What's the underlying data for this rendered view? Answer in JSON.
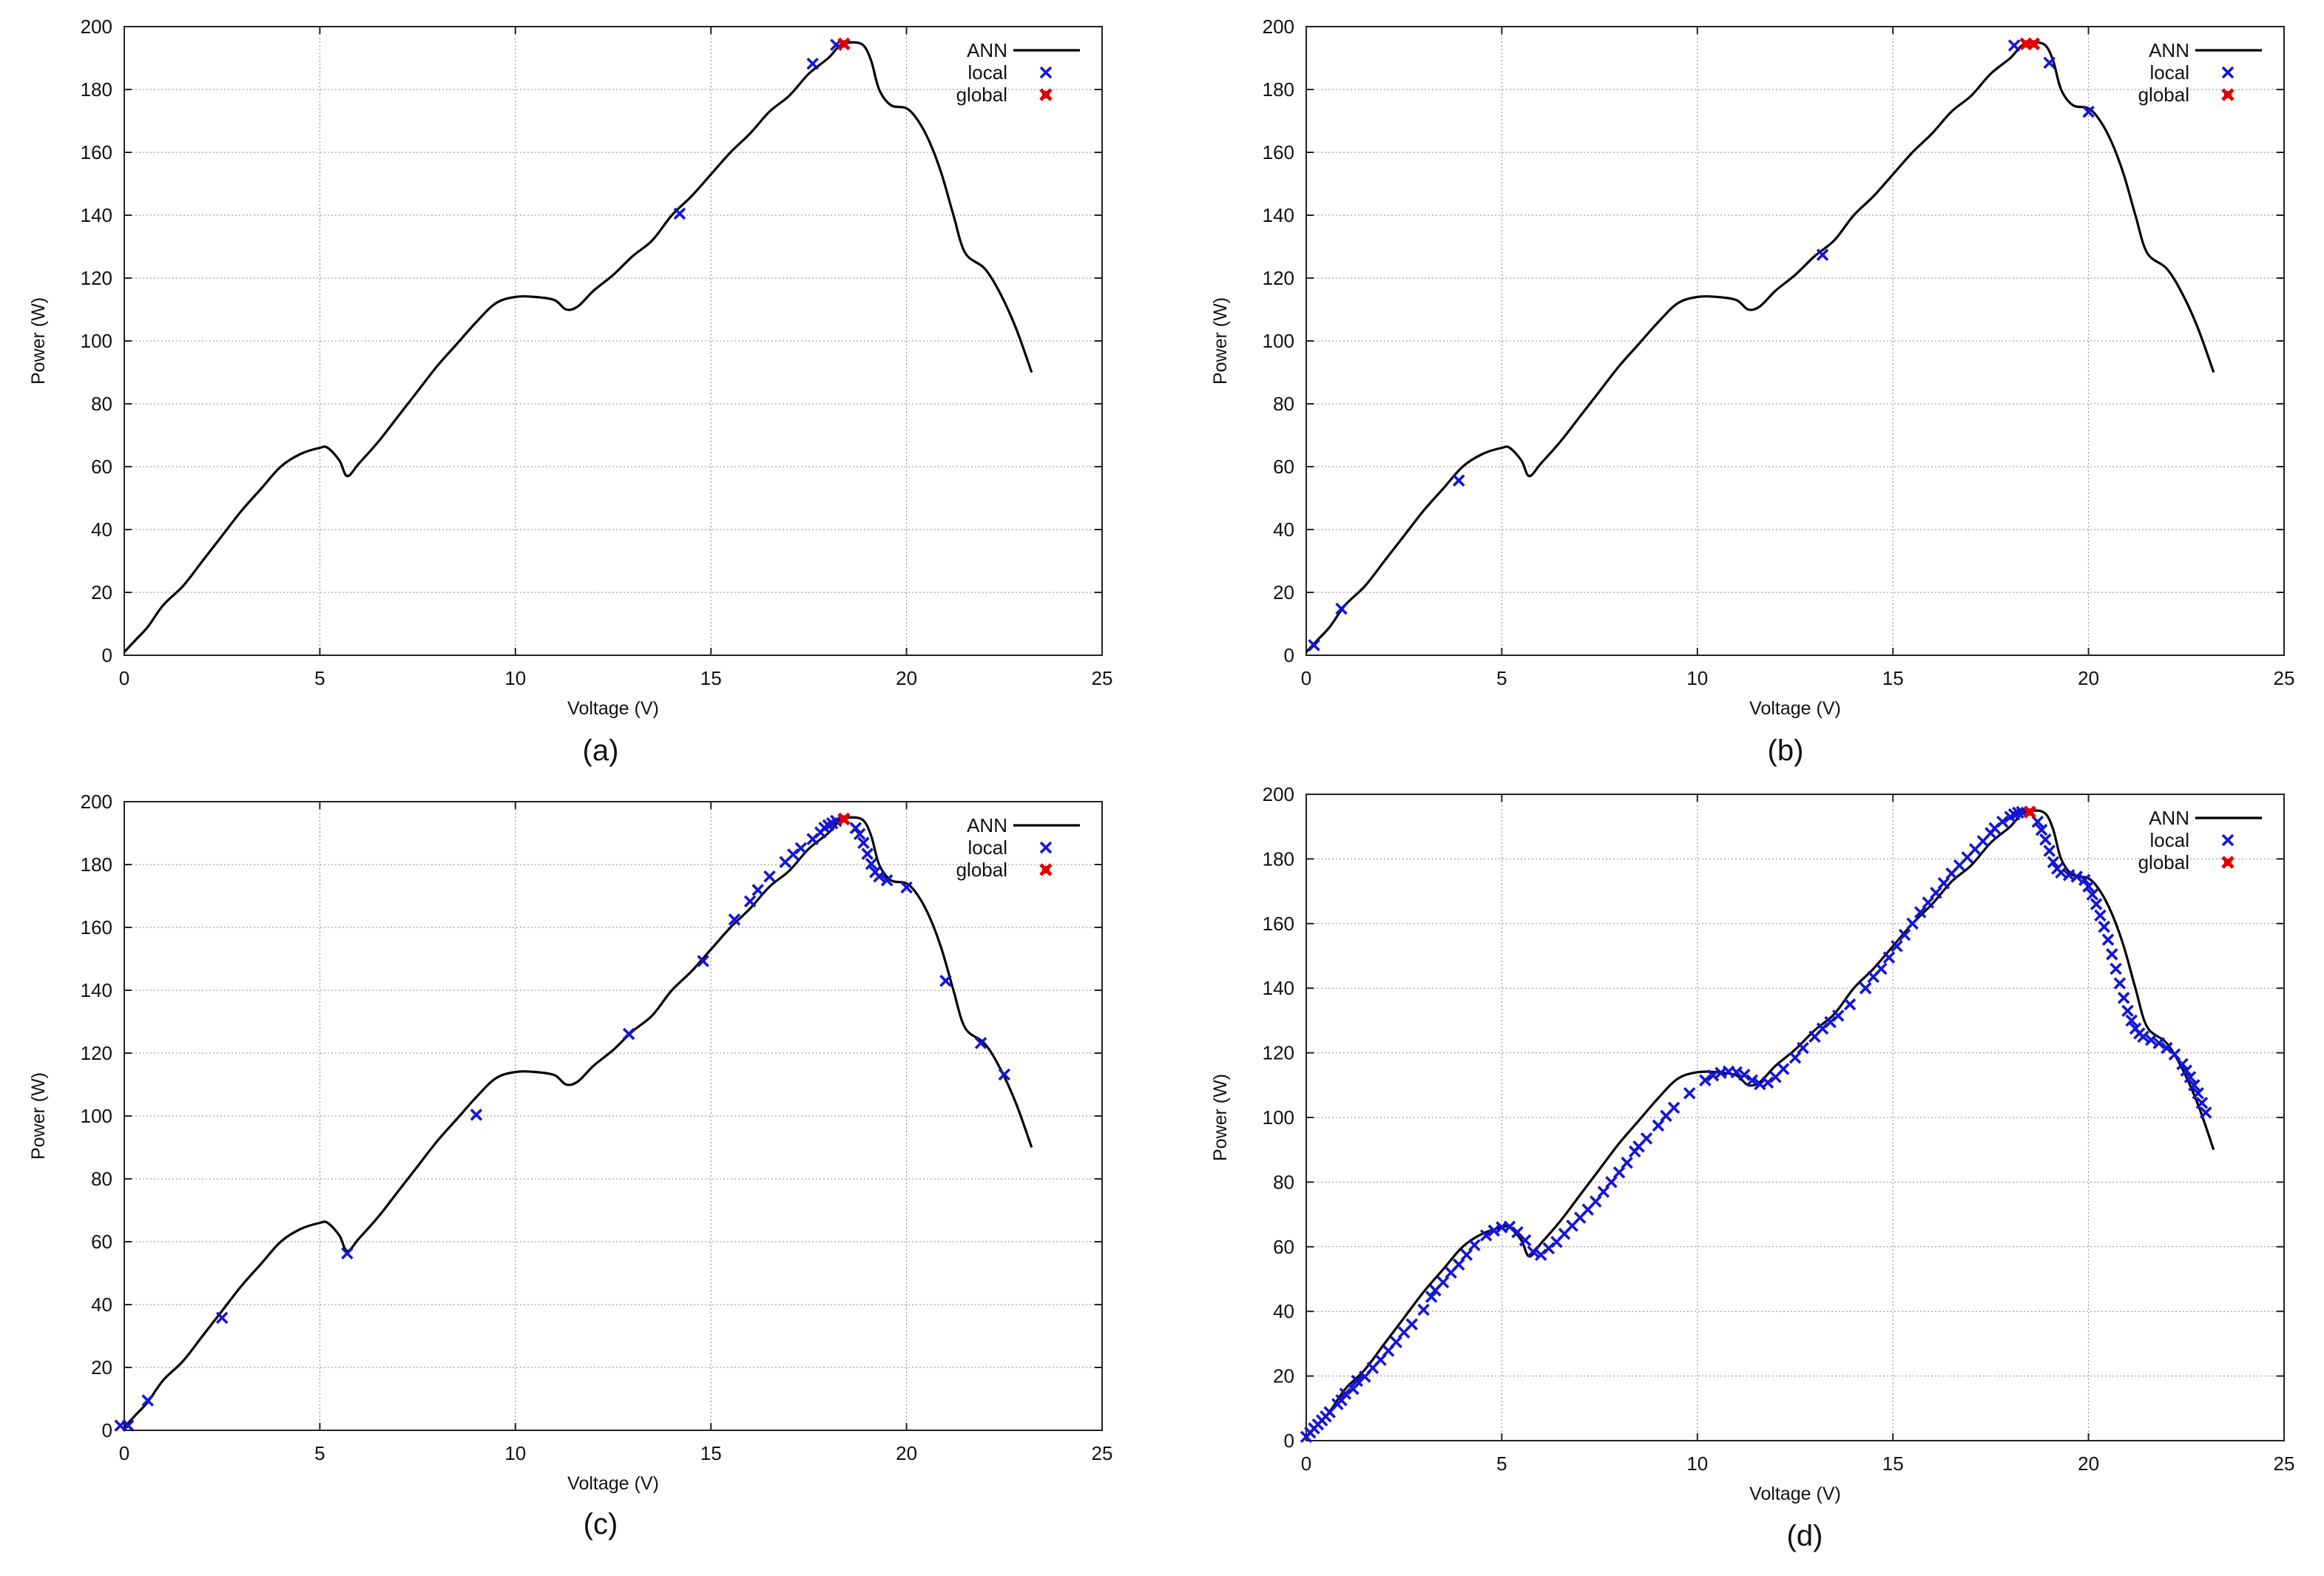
{
  "colors": {
    "curve": "#000000",
    "local": "#1515d4",
    "global": "#e00000",
    "grid": "#8a8a8a"
  },
  "chart_data": [
    {
      "type": "line",
      "caption": "(a)",
      "xlabel": "Voltage (V)",
      "ylabel": "Power (W)",
      "xlim": [
        0,
        25
      ],
      "ylim": [
        0,
        200
      ],
      "xticks": [
        0,
        5,
        10,
        15,
        20,
        25
      ],
      "yticks": [
        0,
        20,
        40,
        60,
        80,
        100,
        120,
        140,
        160,
        180,
        200
      ],
      "grid": true,
      "legend_position": "top-right",
      "series": [
        {
          "name": "ANN",
          "type": "line",
          "x": [
            0,
            0.3,
            0.6,
            1,
            1.5,
            2,
            2.5,
            3,
            3.5,
            4,
            4.5,
            5,
            5.2,
            5.5,
            5.7,
            6,
            6.5,
            7,
            7.5,
            8,
            8.5,
            9,
            9.5,
            10,
            10.5,
            11,
            11.3,
            11.6,
            12,
            12.5,
            13,
            13.5,
            14,
            14.5,
            15,
            15.5,
            16,
            16.5,
            17,
            17.5,
            18,
            18.3,
            18.6,
            18.9,
            19.1,
            19.3,
            19.6,
            20,
            20.3,
            20.6,
            20.9,
            21.2,
            21.5,
            22,
            22.4,
            22.8,
            23.2
          ],
          "y": [
            1,
            5,
            9,
            16,
            22,
            30,
            38,
            46,
            53,
            60,
            64,
            66,
            66,
            62,
            57,
            61,
            68,
            76,
            84,
            92,
            99,
            106,
            112,
            114,
            114,
            113,
            110,
            111,
            116,
            121,
            127,
            132,
            140,
            146,
            153,
            160,
            166,
            173,
            178,
            185,
            190,
            194,
            195,
            194,
            189,
            180,
            175,
            174,
            170,
            163,
            153,
            140,
            128,
            123,
            115,
            104,
            90
          ]
        },
        {
          "name": "local",
          "type": "scatter",
          "x": [
            14.2,
            17.6,
            18.2
          ],
          "y": [
            140.5,
            188.2,
            194.2
          ]
        },
        {
          "name": "global",
          "type": "scatter",
          "x": [
            18.4
          ],
          "y": [
            194.5
          ]
        }
      ]
    },
    {
      "type": "line",
      "caption": "(b)",
      "xlabel": "Voltage (V)",
      "ylabel": "Power (W)",
      "xlim": [
        0,
        25
      ],
      "ylim": [
        0,
        200
      ],
      "xticks": [
        0,
        5,
        10,
        15,
        20,
        25
      ],
      "yticks": [
        0,
        20,
        40,
        60,
        80,
        100,
        120,
        140,
        160,
        180,
        200
      ],
      "grid": true,
      "legend_position": "top-right",
      "series": [
        {
          "name": "ANN",
          "type": "line",
          "x": [
            0,
            0.3,
            0.6,
            1,
            1.5,
            2,
            2.5,
            3,
            3.5,
            4,
            4.5,
            5,
            5.2,
            5.5,
            5.7,
            6,
            6.5,
            7,
            7.5,
            8,
            8.5,
            9,
            9.5,
            10,
            10.5,
            11,
            11.3,
            11.6,
            12,
            12.5,
            13,
            13.5,
            14,
            14.5,
            15,
            15.5,
            16,
            16.5,
            17,
            17.5,
            18,
            18.3,
            18.6,
            18.9,
            19.1,
            19.3,
            19.6,
            20,
            20.3,
            20.6,
            20.9,
            21.2,
            21.5,
            22,
            22.4,
            22.8,
            23.2
          ],
          "y": [
            1,
            5,
            9,
            16,
            22,
            30,
            38,
            46,
            53,
            60,
            64,
            66,
            66,
            62,
            57,
            61,
            68,
            76,
            84,
            92,
            99,
            106,
            112,
            114,
            114,
            113,
            110,
            111,
            116,
            121,
            127,
            132,
            140,
            146,
            153,
            160,
            166,
            173,
            178,
            185,
            190,
            194,
            195,
            194,
            189,
            180,
            175,
            174,
            170,
            163,
            153,
            140,
            128,
            123,
            115,
            104,
            90
          ]
        },
        {
          "name": "local",
          "type": "scatter",
          "x": [
            0.2,
            0.9,
            3.9,
            13.2,
            18.1,
            19.0,
            20.0
          ],
          "y": [
            3.2,
            14.8,
            55.6,
            127.4,
            194.0,
            188.5,
            172.9
          ]
        },
        {
          "name": "global",
          "type": "scatter",
          "x": [
            18.4,
            18.6
          ],
          "y": [
            194.5,
            194.5
          ]
        }
      ]
    },
    {
      "type": "line",
      "caption": "(c)",
      "xlabel": "Voltage (V)",
      "ylabel": "Power (W)",
      "xlim": [
        0,
        25
      ],
      "ylim": [
        0,
        200
      ],
      "xticks": [
        0,
        5,
        10,
        15,
        20,
        25
      ],
      "yticks": [
        0,
        20,
        40,
        60,
        80,
        100,
        120,
        140,
        160,
        180,
        200
      ],
      "grid": true,
      "legend_position": "top-right",
      "series": [
        {
          "name": "ANN",
          "type": "line",
          "x": [
            0,
            0.3,
            0.6,
            1,
            1.5,
            2,
            2.5,
            3,
            3.5,
            4,
            4.5,
            5,
            5.2,
            5.5,
            5.7,
            6,
            6.5,
            7,
            7.5,
            8,
            8.5,
            9,
            9.5,
            10,
            10.5,
            11,
            11.3,
            11.6,
            12,
            12.5,
            13,
            13.5,
            14,
            14.5,
            15,
            15.5,
            16,
            16.5,
            17,
            17.5,
            18,
            18.3,
            18.6,
            18.9,
            19.1,
            19.3,
            19.6,
            20,
            20.3,
            20.6,
            20.9,
            21.2,
            21.5,
            22,
            22.4,
            22.8,
            23.2
          ],
          "y": [
            1,
            5,
            9,
            16,
            22,
            30,
            38,
            46,
            53,
            60,
            64,
            66,
            66,
            62,
            57,
            61,
            68,
            76,
            84,
            92,
            99,
            106,
            112,
            114,
            114,
            113,
            110,
            111,
            116,
            121,
            127,
            132,
            140,
            146,
            153,
            160,
            166,
            173,
            178,
            185,
            190,
            194,
            195,
            194,
            189,
            180,
            175,
            174,
            170,
            163,
            153,
            140,
            128,
            123,
            115,
            104,
            90
          ]
        },
        {
          "name": "local",
          "type": "scatter",
          "x": [
            -0.1,
            0.1,
            0.6,
            2.5,
            5.7,
            9.0,
            12.9,
            14.8,
            15.6,
            16.0,
            16.2,
            16.5,
            16.9,
            17.1,
            17.3,
            17.6,
            17.8,
            17.9,
            18.0,
            18.1,
            18.2,
            18.7,
            18.8,
            18.9,
            19.0,
            19.1,
            19.2,
            19.3,
            19.5,
            20.0,
            21.0,
            21.9,
            22.5
          ],
          "y": [
            1.5,
            1.5,
            9.5,
            35.8,
            56.3,
            100.4,
            126.1,
            149.3,
            162.5,
            168.3,
            171.9,
            176.2,
            180.8,
            183.2,
            185.2,
            188.1,
            190.2,
            191.7,
            192.5,
            193.1,
            193.9,
            191.6,
            189.7,
            186.9,
            183.4,
            180.2,
            177.6,
            176.2,
            175.0,
            172.7,
            143.0,
            123.2,
            113.2
          ]
        },
        {
          "name": "global",
          "type": "scatter",
          "x": [
            18.4
          ],
          "y": [
            194.5
          ]
        }
      ]
    },
    {
      "type": "line",
      "caption": "(d)",
      "xlabel": "Voltage (V)",
      "ylabel": "Power (W)",
      "xlim": [
        0,
        25
      ],
      "ylim": [
        0,
        200
      ],
      "xticks": [
        0,
        5,
        10,
        15,
        20,
        25
      ],
      "yticks": [
        0,
        20,
        40,
        60,
        80,
        100,
        120,
        140,
        160,
        180,
        200
      ],
      "grid": true,
      "legend_position": "top-right",
      "series": [
        {
          "name": "ANN",
          "type": "line",
          "x": [
            0,
            0.3,
            0.6,
            1,
            1.5,
            2,
            2.5,
            3,
            3.5,
            4,
            4.5,
            5,
            5.2,
            5.5,
            5.7,
            6,
            6.5,
            7,
            7.5,
            8,
            8.5,
            9,
            9.5,
            10,
            10.5,
            11,
            11.3,
            11.6,
            12,
            12.5,
            13,
            13.5,
            14,
            14.5,
            15,
            15.5,
            16,
            16.5,
            17,
            17.5,
            18,
            18.3,
            18.6,
            18.9,
            19.1,
            19.3,
            19.6,
            20,
            20.3,
            20.6,
            20.9,
            21.2,
            21.5,
            22,
            22.4,
            22.8,
            23.2
          ],
          "y": [
            1,
            5,
            9,
            16,
            22,
            30,
            38,
            46,
            53,
            60,
            64,
            66,
            66,
            62,
            57,
            61,
            68,
            76,
            84,
            92,
            99,
            106,
            112,
            114,
            114,
            113,
            110,
            111,
            116,
            121,
            127,
            132,
            140,
            146,
            153,
            160,
            166,
            173,
            178,
            185,
            190,
            194,
            195,
            194,
            189,
            180,
            175,
            174,
            170,
            163,
            153,
            140,
            128,
            123,
            115,
            104,
            90
          ]
        },
        {
          "name": "local",
          "type": "scatter",
          "x": [
            0.0,
            0.1,
            0.2,
            0.3,
            0.4,
            0.5,
            0.6,
            0.8,
            0.9,
            1.0,
            1.2,
            1.3,
            1.5,
            1.7,
            1.9,
            2.1,
            2.3,
            2.5,
            2.7,
            3.0,
            3.2,
            3.3,
            3.5,
            3.7,
            3.9,
            4.1,
            4.3,
            4.6,
            4.8,
            5.0,
            5.2,
            5.4,
            5.6,
            5.8,
            6.0,
            6.2,
            6.4,
            6.6,
            6.8,
            7.0,
            7.2,
            7.4,
            7.6,
            7.8,
            8.0,
            8.2,
            8.4,
            8.5,
            8.7,
            9.0,
            9.2,
            9.4,
            9.8,
            10.2,
            10.4,
            10.6,
            10.8,
            11.0,
            11.2,
            11.4,
            11.6,
            11.8,
            12.0,
            12.2,
            12.5,
            12.7,
            13.0,
            13.2,
            13.4,
            13.6,
            13.9,
            14.3,
            14.5,
            14.7,
            14.9,
            15.1,
            15.3,
            15.5,
            15.7,
            15.9,
            16.1,
            16.3,
            16.5,
            16.7,
            16.9,
            17.1,
            17.3,
            17.5,
            17.6,
            17.8,
            18.0,
            18.1,
            18.2,
            18.3,
            18.7,
            18.8,
            18.9,
            19.0,
            19.1,
            19.2,
            19.3,
            19.5,
            19.7,
            19.9,
            20.0,
            20.1,
            20.2,
            20.3,
            20.4,
            20.5,
            20.6,
            20.7,
            20.8,
            20.9,
            21.0,
            21.1,
            21.2,
            21.3,
            21.4,
            21.6,
            21.8,
            22.0,
            22.2,
            22.4,
            22.5,
            22.6,
            22.7,
            22.8,
            22.9,
            23.0
          ],
          "y": [
            1.2,
            2.5,
            3.8,
            5.0,
            6.3,
            7.5,
            8.8,
            11.3,
            12.5,
            14.5,
            16.0,
            18.5,
            19.8,
            22.5,
            25.0,
            27.8,
            30.5,
            33.5,
            36.0,
            40.5,
            44.5,
            46.5,
            49.0,
            52.0,
            54.5,
            57.5,
            60.5,
            63.5,
            65.0,
            66.0,
            66.2,
            64.5,
            62.0,
            58.5,
            57.5,
            59.5,
            61.5,
            64.0,
            66.5,
            69.0,
            71.5,
            74.0,
            77.0,
            80.0,
            83.0,
            86.0,
            89.5,
            91.0,
            93.5,
            97.5,
            100.5,
            103.0,
            107.5,
            111.5,
            113.0,
            113.8,
            114.2,
            114.0,
            113.2,
            111.5,
            110.3,
            110.8,
            112.5,
            115.0,
            118.5,
            121.5,
            125.0,
            127.5,
            129.5,
            131.5,
            135.0,
            140.0,
            143.5,
            146.0,
            149.5,
            153.0,
            156.5,
            160.0,
            163.5,
            166.5,
            169.5,
            172.5,
            175.5,
            178.0,
            180.5,
            183.0,
            185.5,
            188.0,
            189.5,
            191.5,
            193.0,
            193.8,
            194.3,
            194.5,
            191.5,
            189.0,
            186.0,
            182.5,
            179.0,
            177.0,
            175.8,
            175.0,
            174.5,
            173.5,
            171.5,
            169.0,
            166.0,
            162.5,
            159.0,
            155.0,
            150.5,
            146.0,
            141.5,
            137.0,
            133.0,
            130.0,
            127.5,
            126.0,
            125.0,
            124.0,
            123.0,
            121.5,
            119.5,
            116.5,
            114.5,
            112.5,
            110.0,
            107.5,
            104.5,
            101.5
          ]
        },
        {
          "name": "global",
          "type": "scatter",
          "x": [
            18.5
          ],
          "y": [
            194.5
          ]
        }
      ]
    }
  ]
}
